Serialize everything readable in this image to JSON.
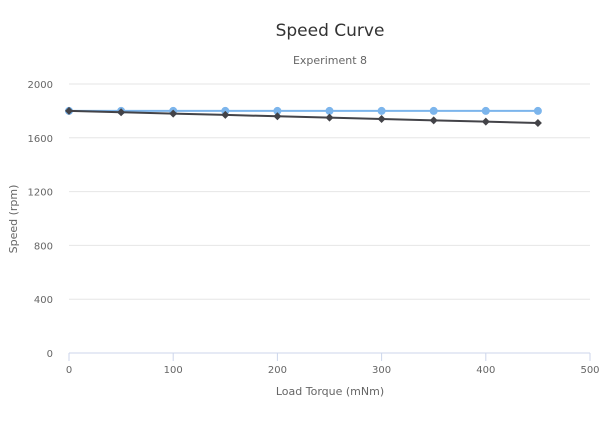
{
  "chart_data": {
    "type": "line",
    "title": "Speed Curve",
    "subtitle": "Experiment 8",
    "xlabel": "Load Torque (mNm)",
    "ylabel": "Speed (rpm)",
    "xlim": [
      0,
      500
    ],
    "ylim": [
      0,
      2000
    ],
    "x_ticks": [
      0,
      100,
      200,
      300,
      400,
      500
    ],
    "y_ticks": [
      0,
      400,
      800,
      1200,
      1600,
      2000
    ],
    "grid": "horizontal",
    "x": [
      0,
      50,
      100,
      150,
      200,
      250,
      300,
      350,
      400,
      450
    ],
    "series": [
      {
        "color": "#7cb5ec",
        "marker": "circle",
        "values": [
          1800,
          1800,
          1800,
          1800,
          1800,
          1800,
          1800,
          1800,
          1800,
          1800
        ]
      },
      {
        "color": "#434348",
        "marker": "diamond",
        "values": [
          1800,
          1790,
          1780,
          1770,
          1760,
          1750,
          1740,
          1730,
          1720,
          1710
        ]
      }
    ],
    "colors": {
      "grid": "#e6e6e6",
      "x_axis": "#ccd6eb",
      "tick_label": "#666666",
      "axis_title": "#666666",
      "title": "#333333",
      "subtitle": "#666666"
    }
  }
}
